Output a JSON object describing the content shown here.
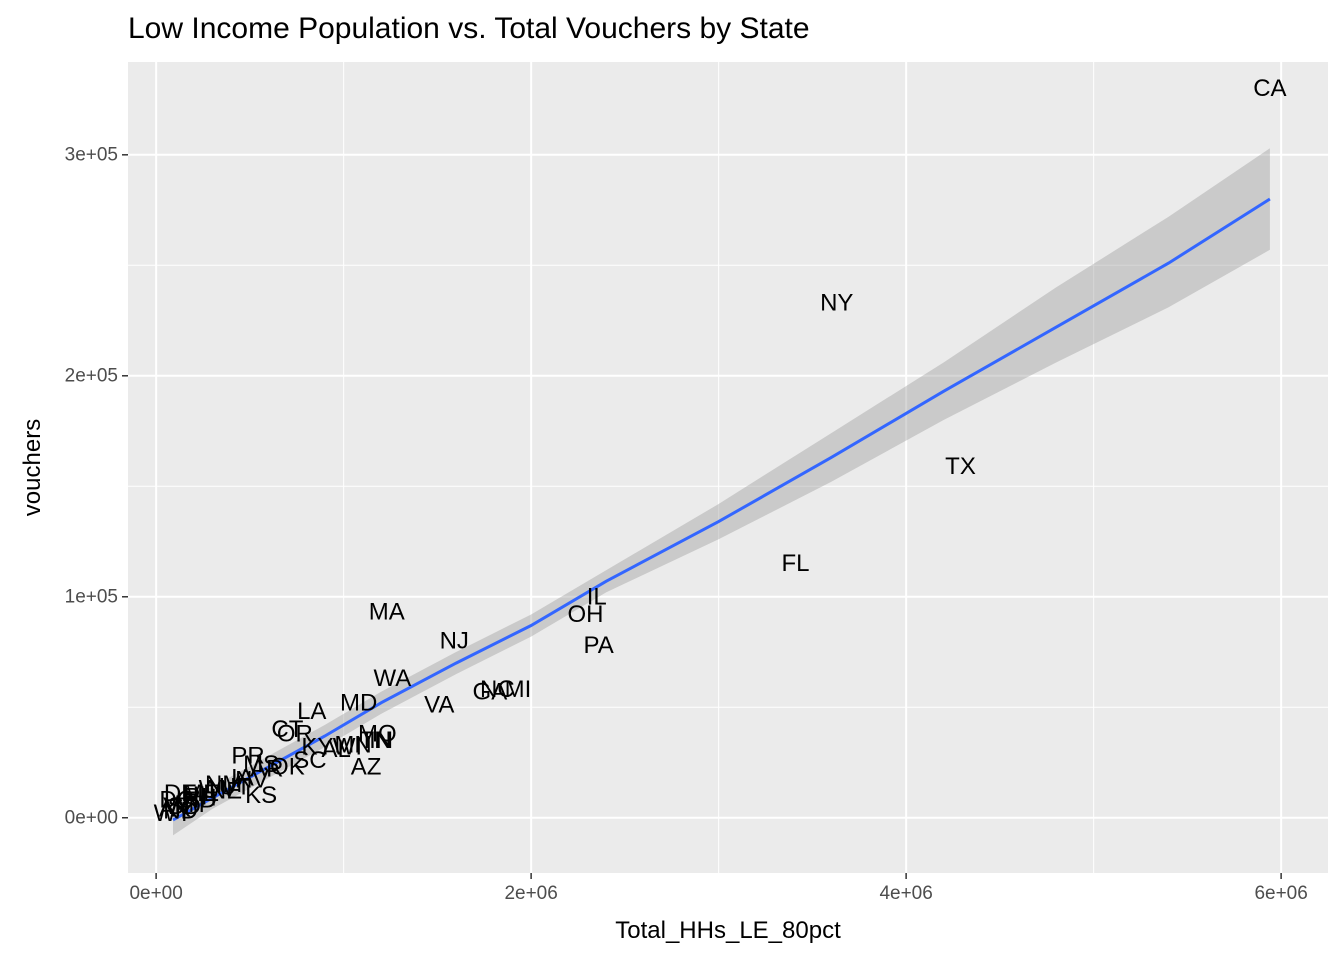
{
  "chart_data": {
    "type": "scatter",
    "title": "Low Income Population vs. Total Vouchers by State",
    "xlabel": "Total_HHs_LE_80pct",
    "ylabel": "vouchers",
    "xlim": [
      -150000,
      6250000
    ],
    "ylim": [
      -25000,
      342000
    ],
    "x_ticks": [
      {
        "value": 0,
        "label": "0e+00"
      },
      {
        "value": 2000000,
        "label": "2e+06"
      },
      {
        "value": 4000000,
        "label": "4e+06"
      },
      {
        "value": 6000000,
        "label": "6e+06"
      }
    ],
    "y_ticks": [
      {
        "value": 0,
        "label": "0e+00"
      },
      {
        "value": 100000,
        "label": "1e+05"
      },
      {
        "value": 200000,
        "label": "2e+05"
      },
      {
        "value": 300000,
        "label": "3e+05"
      }
    ],
    "grid": true,
    "label_column": "state",
    "points": [
      {
        "label": "CA",
        "x": 5940000,
        "y": 330000
      },
      {
        "label": "NY",
        "x": 3630000,
        "y": 233000
      },
      {
        "label": "TX",
        "x": 4290000,
        "y": 159000
      },
      {
        "label": "FL",
        "x": 3410000,
        "y": 115000
      },
      {
        "label": "IL",
        "x": 2350000,
        "y": 100000
      },
      {
        "label": "OH",
        "x": 2290000,
        "y": 92000
      },
      {
        "label": "PA",
        "x": 2360000,
        "y": 78000
      },
      {
        "label": "MA",
        "x": 1230000,
        "y": 93000
      },
      {
        "label": "NJ",
        "x": 1590000,
        "y": 80000
      },
      {
        "label": "WA",
        "x": 1260000,
        "y": 63000
      },
      {
        "label": "VA",
        "x": 1510000,
        "y": 51000
      },
      {
        "label": "GA",
        "x": 1780000,
        "y": 57000
      },
      {
        "label": "NC",
        "x": 1820000,
        "y": 58000
      },
      {
        "label": "MI",
        "x": 1930000,
        "y": 58000
      },
      {
        "label": "MD",
        "x": 1080000,
        "y": 52000
      },
      {
        "label": "LA",
        "x": 830000,
        "y": 48000
      },
      {
        "label": "CT",
        "x": 700000,
        "y": 40000
      },
      {
        "label": "OR",
        "x": 740000,
        "y": 38000
      },
      {
        "label": "MO",
        "x": 1180000,
        "y": 38000
      },
      {
        "label": "TN",
        "x": 1170000,
        "y": 35000
      },
      {
        "label": "IN",
        "x": 1200000,
        "y": 35000
      },
      {
        "label": "MN",
        "x": 1050000,
        "y": 33000
      },
      {
        "label": "WI",
        "x": 1020000,
        "y": 32000
      },
      {
        "label": "KY",
        "x": 860000,
        "y": 32000
      },
      {
        "label": "AL",
        "x": 960000,
        "y": 31000
      },
      {
        "label": "SC",
        "x": 820000,
        "y": 26000
      },
      {
        "label": "AZ",
        "x": 1120000,
        "y": 23000
      },
      {
        "label": "PR",
        "x": 490000,
        "y": 28000
      },
      {
        "label": "MS",
        "x": 560000,
        "y": 24000
      },
      {
        "label": "OK",
        "x": 700000,
        "y": 23000
      },
      {
        "label": "AR",
        "x": 590000,
        "y": 22000
      },
      {
        "label": "KS",
        "x": 560000,
        "y": 10000
      },
      {
        "label": "IA",
        "x": 460000,
        "y": 18000
      },
      {
        "label": "NV",
        "x": 510000,
        "y": 17000
      },
      {
        "label": "UT",
        "x": 420000,
        "y": 14000
      },
      {
        "label": "NM",
        "x": 360000,
        "y": 15000
      },
      {
        "label": "NE",
        "x": 370000,
        "y": 12000
      },
      {
        "label": "WV",
        "x": 330000,
        "y": 13000
      },
      {
        "label": "ME",
        "x": 240000,
        "y": 11000
      },
      {
        "label": "NH",
        "x": 230000,
        "y": 9000
      },
      {
        "label": "RI",
        "x": 210000,
        "y": 9500
      },
      {
        "label": "ID",
        "x": 260000,
        "y": 8000
      },
      {
        "label": "HI",
        "x": 200000,
        "y": 10000
      },
      {
        "label": "DE",
        "x": 130000,
        "y": 11000
      },
      {
        "label": "DC",
        "x": 110000,
        "y": 8000
      },
      {
        "label": "MT",
        "x": 190000,
        "y": 6000
      },
      {
        "label": "SD",
        "x": 150000,
        "y": 5000
      },
      {
        "label": "VT",
        "x": 120000,
        "y": 5000
      },
      {
        "label": "ND",
        "x": 130000,
        "y": 3000
      },
      {
        "label": "AK",
        "x": 100000,
        "y": 4000
      },
      {
        "label": "WY",
        "x": 90000,
        "y": 2000
      }
    ],
    "trend_line": {
      "method": "loess",
      "color": "#3366FF",
      "band_color": "#999999",
      "points": [
        {
          "x": 90000,
          "y": -1000,
          "lo": -8000,
          "hi": 6000
        },
        {
          "x": 300000,
          "y": 9000,
          "lo": 4000,
          "hi": 14000
        },
        {
          "x": 600000,
          "y": 23000,
          "lo": 18000,
          "hi": 28000
        },
        {
          "x": 900000,
          "y": 37000,
          "lo": 32000,
          "hi": 42000
        },
        {
          "x": 1200000,
          "y": 52000,
          "lo": 47000,
          "hi": 57000
        },
        {
          "x": 1600000,
          "y": 70000,
          "lo": 65000,
          "hi": 75000
        },
        {
          "x": 2000000,
          "y": 87000,
          "lo": 82000,
          "hi": 92000
        },
        {
          "x": 2400000,
          "y": 107000,
          "lo": 102000,
          "hi": 112000
        },
        {
          "x": 3000000,
          "y": 134000,
          "lo": 126000,
          "hi": 142000
        },
        {
          "x": 3600000,
          "y": 163000,
          "lo": 152000,
          "hi": 174000
        },
        {
          "x": 4200000,
          "y": 193000,
          "lo": 180000,
          "hi": 206000
        },
        {
          "x": 4800000,
          "y": 222000,
          "lo": 206000,
          "hi": 240000
        },
        {
          "x": 5400000,
          "y": 251000,
          "lo": 231000,
          "hi": 272000
        },
        {
          "x": 5940000,
          "y": 280000,
          "lo": 257000,
          "hi": 303000
        }
      ]
    },
    "colors": {
      "panel_bg": "#EBEBEB",
      "grid": "#FFFFFF",
      "text": "#000000",
      "tick_text": "#4D4D4D"
    }
  }
}
